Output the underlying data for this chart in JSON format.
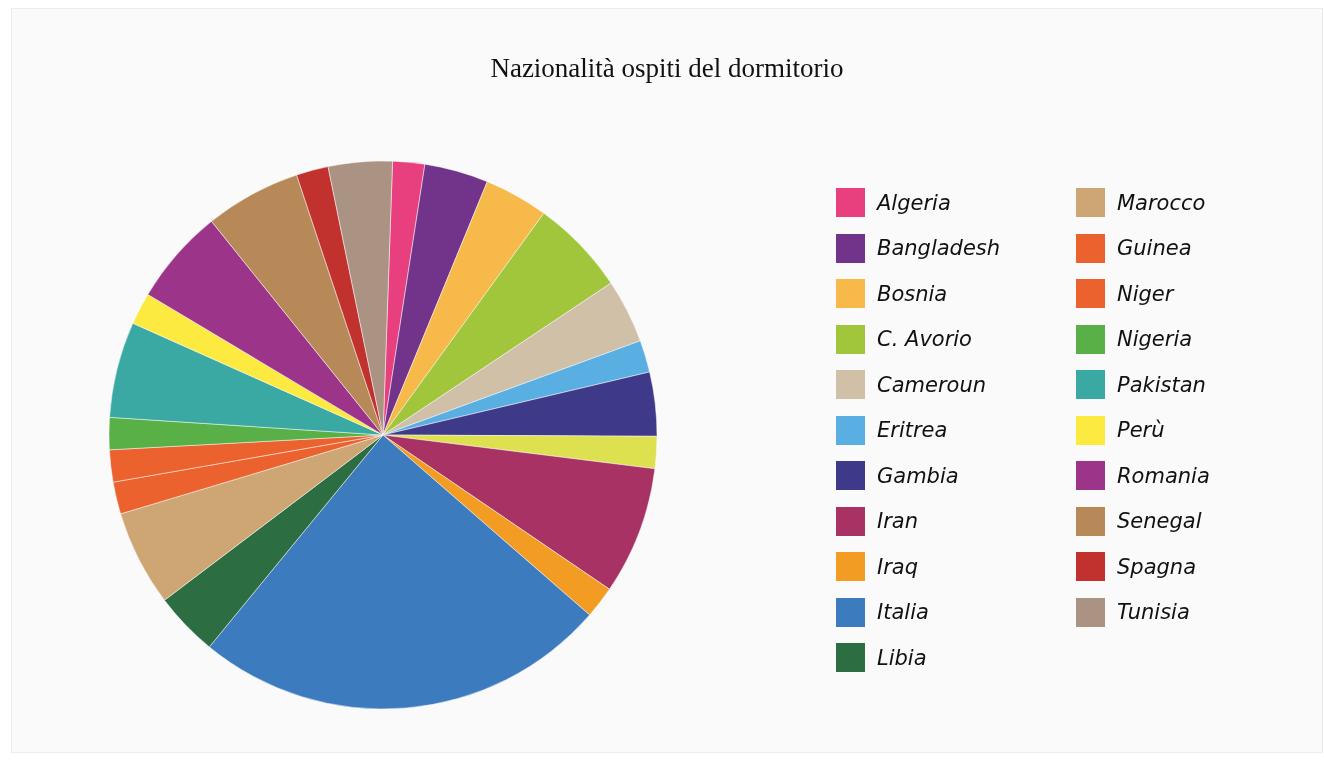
{
  "chart_data": {
    "type": "pie",
    "title": "Nazionalità ospiti del dormitorio",
    "categories": [
      "Algeria",
      "Bangladesh",
      "Bosnia",
      "C. Avorio",
      "Cameroun",
      "Eritrea",
      "Gambia",
      null,
      "Iran",
      "Iraq",
      "Italia",
      "Libia",
      "Marocco",
      "Guinea",
      "Niger",
      "Nigeria",
      "Pakistan",
      "Perù",
      "Romania",
      "Senegal",
      "Spagna",
      "Tunisia"
    ],
    "values": [
      1.89,
      3.77,
      3.77,
      5.66,
      3.77,
      1.89,
      3.77,
      1.89,
      7.55,
      1.89,
      24.52,
      3.77,
      5.66,
      1.89,
      1.89,
      1.89,
      5.66,
      1.89,
      5.66,
      5.66,
      1.89,
      3.77
    ],
    "colors": [
      "#e8407f",
      "#72348b",
      "#f8b94b",
      "#a2c63b",
      "#d0c0a8",
      "#5aafe2",
      "#3f3989",
      "#dde04f",
      "#a83263",
      "#f29c24",
      "#3d7bbf",
      "#2c6e41",
      "#cea674",
      "#eb622f",
      "#eb622f",
      "#58b047",
      "#3aa8a3",
      "#fdea41",
      "#9c358a",
      "#b78959",
      "#c1322f",
      "#ab9384"
    ],
    "legend": "right"
  }
}
